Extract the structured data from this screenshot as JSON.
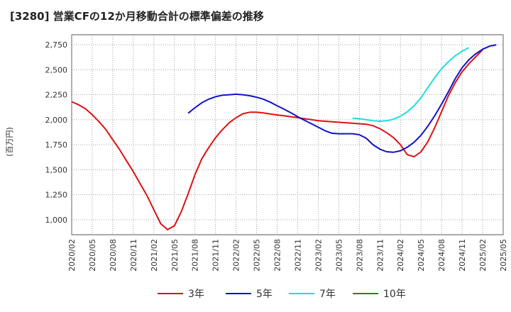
{
  "chart_data": {
    "type": "line",
    "title": "[3280]  営業CFの12か月移動合計の標準偏差の推移",
    "xlabel": "",
    "ylabel": "(百万円)",
    "ylim": [
      850,
      2850
    ],
    "yticks": [
      1000,
      1250,
      1500,
      1750,
      2000,
      2250,
      2500,
      2750
    ],
    "ytick_labels": [
      "1,000",
      "1,250",
      "1,500",
      "1,750",
      "2,000",
      "2,250",
      "2,500",
      "2,750"
    ],
    "x_categories": [
      "2020/02",
      "2020/05",
      "2020/08",
      "2020/11",
      "2021/02",
      "2021/05",
      "2021/08",
      "2021/11",
      "2022/02",
      "2022/05",
      "2022/08",
      "2022/11",
      "2023/02",
      "2023/05",
      "2023/08",
      "2023/11",
      "2024/02",
      "2024/05",
      "2024/08",
      "2024/11",
      "2025/02",
      "2025/05"
    ],
    "grid": true,
    "legend_position": "bottom",
    "series": [
      {
        "name": "3年",
        "color": "#dd1111",
        "start": "2020/02",
        "values": [
          2180,
          2150,
          2110,
          2050,
          1980,
          1900,
          1800,
          1700,
          1590,
          1480,
          1360,
          1240,
          1100,
          960,
          900,
          940,
          1080,
          1260,
          1450,
          1610,
          1720,
          1820,
          1900,
          1970,
          2020,
          2060,
          2075,
          2075,
          2068,
          2058,
          2048,
          2040,
          2030,
          2020,
          2010,
          2000,
          1990,
          1985,
          1980,
          1975,
          1970,
          1965,
          1960,
          1955,
          1940,
          1910,
          1870,
          1820,
          1750,
          1650,
          1630,
          1680,
          1780,
          1920,
          2080,
          2240,
          2370,
          2480,
          2560,
          2630,
          2700
        ]
      },
      {
        "name": "5年",
        "color": "#1111cc",
        "start": "2021/07",
        "values": [
          2065,
          2120,
          2170,
          2205,
          2230,
          2245,
          2250,
          2255,
          2250,
          2240,
          2225,
          2205,
          2175,
          2140,
          2105,
          2070,
          2030,
          1995,
          1960,
          1925,
          1890,
          1865,
          1860,
          1860,
          1860,
          1850,
          1815,
          1750,
          1705,
          1680,
          1675,
          1690,
          1725,
          1775,
          1845,
          1935,
          2040,
          2155,
          2280,
          2410,
          2520,
          2600,
          2660,
          2705,
          2735,
          2750
        ]
      },
      {
        "name": "7年",
        "color": "#22dddd",
        "start": "2023/07",
        "values": [
          2015,
          2010,
          2000,
          1990,
          1985,
          1990,
          2005,
          2035,
          2080,
          2140,
          2220,
          2320,
          2420,
          2510,
          2580,
          2640,
          2685,
          2720
        ]
      },
      {
        "name": "10年",
        "color": "#228822",
        "start": "2025/02",
        "values": []
      }
    ]
  }
}
